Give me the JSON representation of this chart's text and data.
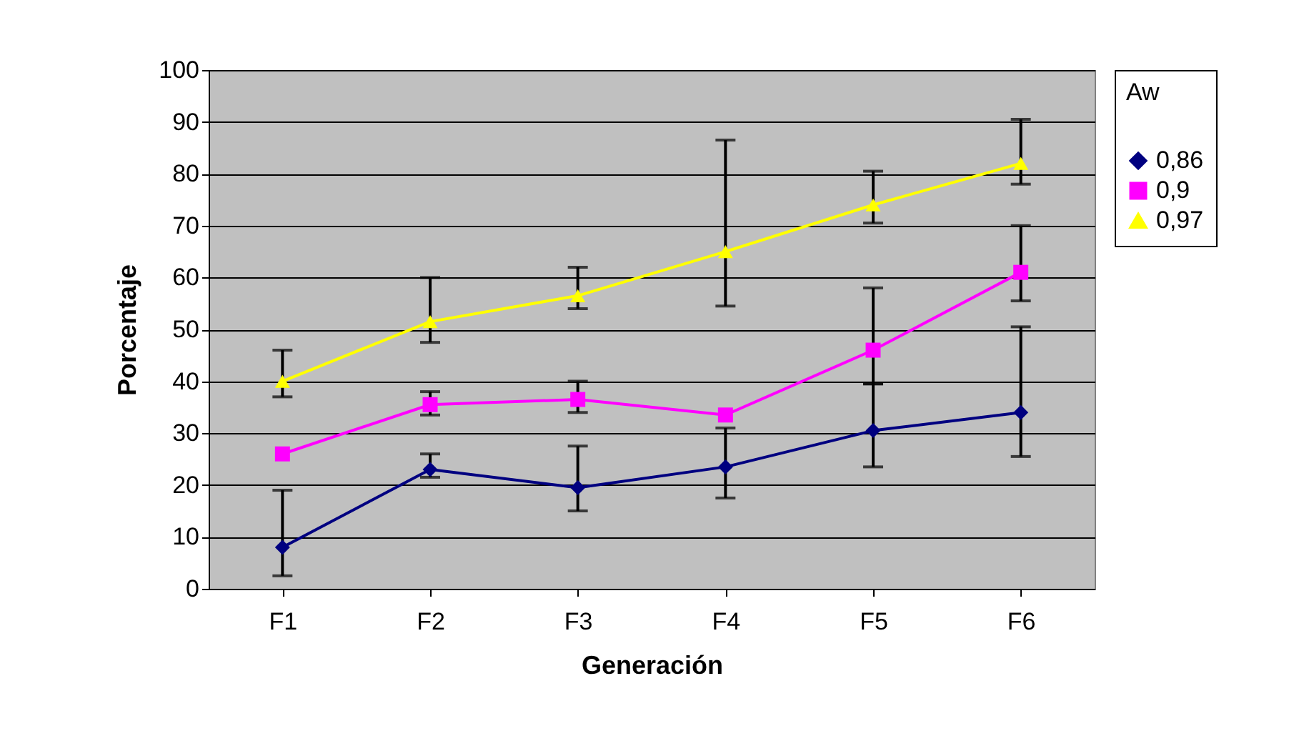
{
  "chart_data": {
    "type": "line",
    "xlabel": "Generación",
    "ylabel": "Porcentaje",
    "legend_title": "Aw",
    "legend": "right",
    "grid": "y",
    "line_style": "solid",
    "categories": [
      "F1",
      "F2",
      "F3",
      "F4",
      "F5",
      "F6"
    ],
    "ylim": [
      0,
      100
    ],
    "yticks": [
      0,
      10,
      20,
      30,
      40,
      50,
      60,
      70,
      80,
      90,
      100
    ],
    "series": [
      {
        "name": "0,86",
        "color": "#000080",
        "marker": "diamond",
        "values": [
          8,
          23,
          19.5,
          23.5,
          30.5,
          34
        ],
        "errors": [
          [
            2.5,
            19
          ],
          [
            21.5,
            26
          ],
          [
            15,
            27.5
          ],
          [
            17.5,
            31
          ],
          [
            23.5,
            39.5
          ],
          [
            25.5,
            50.5
          ]
        ]
      },
      {
        "name": "0,9",
        "color": "#ff00ff",
        "marker": "square",
        "values": [
          26,
          35.5,
          36.5,
          33.5,
          46,
          61
        ],
        "errors": [
          null,
          [
            33.5,
            38
          ],
          [
            34,
            40
          ],
          null,
          [
            39.5,
            58
          ],
          [
            55.5,
            70
          ]
        ]
      },
      {
        "name": "0,97",
        "color": "#ffff00",
        "marker": "triangle",
        "values": [
          40,
          51.5,
          56.5,
          65,
          74,
          82
        ],
        "errors": [
          [
            37,
            46
          ],
          [
            47.5,
            60
          ],
          [
            54,
            62
          ],
          [
            54.5,
            86.5
          ],
          [
            70.5,
            80.5
          ],
          [
            78,
            90.5
          ]
        ]
      }
    ]
  }
}
